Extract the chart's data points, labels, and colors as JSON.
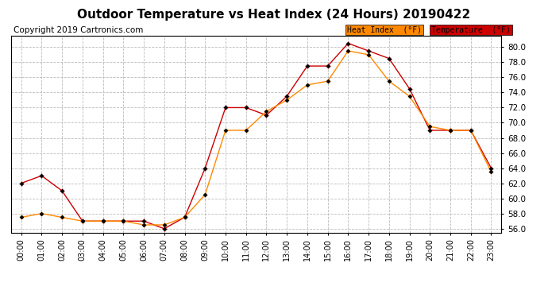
{
  "title": "Outdoor Temperature vs Heat Index (24 Hours) 20190422",
  "copyright": "Copyright 2019 Cartronics.com",
  "hours": [
    "00:00",
    "01:00",
    "02:00",
    "03:00",
    "04:00",
    "05:00",
    "06:00",
    "07:00",
    "08:00",
    "09:00",
    "10:00",
    "11:00",
    "12:00",
    "13:00",
    "14:00",
    "15:00",
    "16:00",
    "17:00",
    "18:00",
    "19:00",
    "20:00",
    "21:00",
    "22:00",
    "23:00"
  ],
  "temperature": [
    62.0,
    63.0,
    61.0,
    57.0,
    57.0,
    57.0,
    57.0,
    56.0,
    57.5,
    64.0,
    72.0,
    72.0,
    71.0,
    73.5,
    77.5,
    77.5,
    80.5,
    79.5,
    78.5,
    74.5,
    69.0,
    69.0,
    69.0,
    64.0
  ],
  "heat_index": [
    57.5,
    58.0,
    57.5,
    57.0,
    57.0,
    57.0,
    56.5,
    56.5,
    57.5,
    60.5,
    69.0,
    69.0,
    71.5,
    73.0,
    75.0,
    75.5,
    79.5,
    79.0,
    75.5,
    73.5,
    69.5,
    69.0,
    69.0,
    63.5
  ],
  "temp_color": "#cc0000",
  "heat_index_color": "#ff8800",
  "ylim_min": 55.5,
  "ylim_max": 81.5,
  "yticks": [
    56.0,
    58.0,
    60.0,
    62.0,
    64.0,
    66.0,
    68.0,
    70.0,
    72.0,
    74.0,
    76.0,
    78.0,
    80.0
  ],
  "bg_color": "#ffffff",
  "grid_color": "#bbbbbb",
  "legend_heat_bg": "#ff8800",
  "legend_temp_bg": "#cc0000",
  "title_fontsize": 11,
  "copyright_fontsize": 7.5,
  "axis_fontsize": 7.5,
  "legend_label_heat": "Heat Index  (°F)",
  "legend_label_temp": "Temperature  (°F)"
}
